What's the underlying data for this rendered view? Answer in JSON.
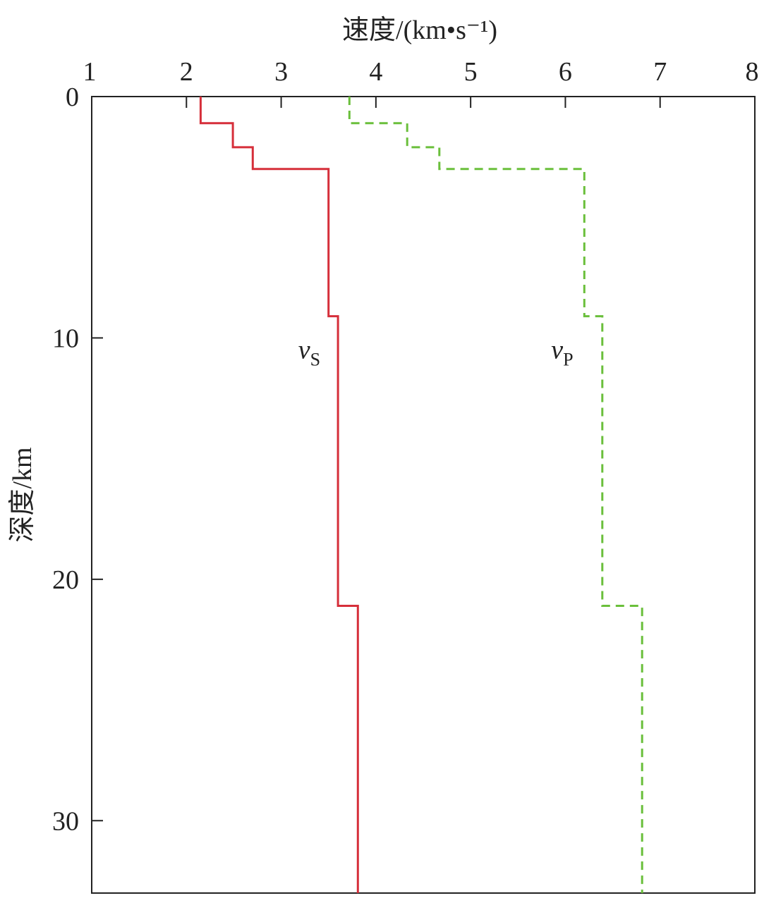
{
  "chart_data": {
    "type": "line",
    "title": "",
    "xlabel": "速度/(km•s⁻¹)",
    "ylabel": "深度/km",
    "x_axis_position": "top",
    "y_axis_inverted": true,
    "xlim": [
      1,
      8
    ],
    "ylim": [
      0,
      33
    ],
    "x_ticks": [
      1,
      2,
      3,
      4,
      5,
      6,
      7,
      8
    ],
    "y_ticks": [
      0,
      10,
      20,
      30
    ],
    "x_tick_labels": [
      "1",
      "2",
      "3",
      "4",
      "5",
      "6",
      "7",
      "8"
    ],
    "y_tick_labels": [
      "0",
      "10",
      "20",
      "30"
    ],
    "grid": false,
    "series": [
      {
        "name": "vS",
        "label_main": "v",
        "label_sub": "S",
        "label_at": {
          "velocity": 3.18,
          "depth": 10.5
        },
        "style": "solid",
        "color": "#d62f3a",
        "layers": [
          {
            "top": 0.0,
            "bottom": 1.1,
            "velocity": 2.15
          },
          {
            "top": 1.1,
            "bottom": 2.1,
            "velocity": 2.49
          },
          {
            "top": 2.1,
            "bottom": 3.0,
            "velocity": 2.7
          },
          {
            "top": 3.0,
            "bottom": 9.1,
            "velocity": 3.5
          },
          {
            "top": 9.1,
            "bottom": 21.1,
            "velocity": 3.6
          },
          {
            "top": 21.1,
            "bottom": 33.0,
            "velocity": 3.81
          }
        ]
      },
      {
        "name": "vP",
        "label_main": "v",
        "label_sub": "P",
        "label_at": {
          "velocity": 5.85,
          "depth": 10.5
        },
        "style": "dashed",
        "color": "#6abf3b",
        "layers": [
          {
            "top": 0.0,
            "bottom": 1.1,
            "velocity": 3.72
          },
          {
            "top": 1.1,
            "bottom": 2.1,
            "velocity": 4.33
          },
          {
            "top": 2.1,
            "bottom": 3.0,
            "velocity": 4.67
          },
          {
            "top": 3.0,
            "bottom": 9.1,
            "velocity": 6.2
          },
          {
            "top": 9.1,
            "bottom": 21.1,
            "velocity": 6.39
          },
          {
            "top": 21.1,
            "bottom": 33.0,
            "velocity": 6.81
          }
        ]
      }
    ]
  }
}
